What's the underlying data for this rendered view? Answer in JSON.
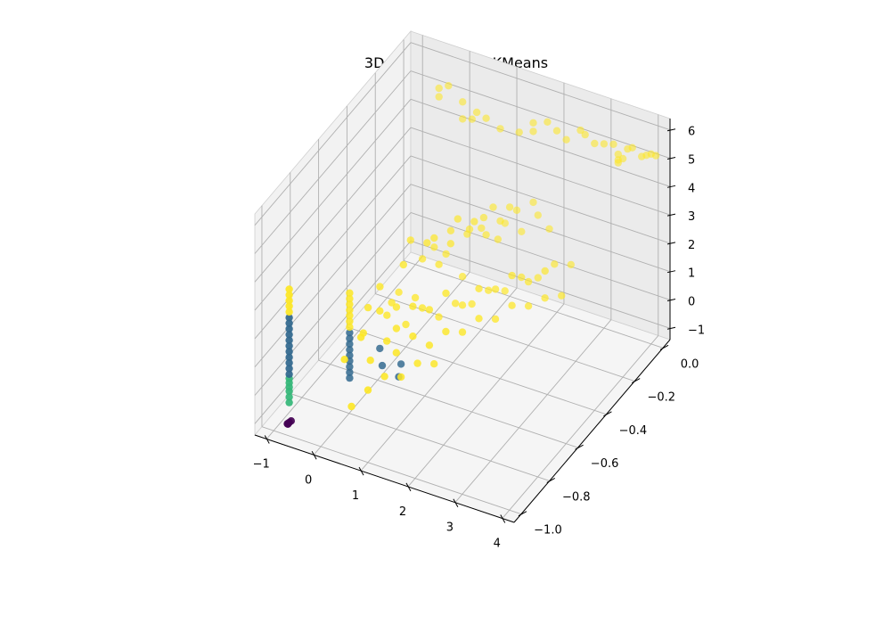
{
  "chart_data": {
    "type": "scatter",
    "projection": "3d",
    "title": "3D clusters using KMeans",
    "xlabel": "",
    "ylabel": "",
    "zlabel": "",
    "xlim": [
      -1.25,
      4.25
    ],
    "ylim": [
      -1.05,
      0.05
    ],
    "zlim": [
      -1.4,
      6.4
    ],
    "x_ticks": [
      -1,
      0,
      1,
      2,
      3,
      4
    ],
    "x_tick_labels": [
      "−1",
      "0",
      "1",
      "2",
      "3",
      "4"
    ],
    "y_ticks": [
      -1.0,
      -0.8,
      -0.6,
      -0.4,
      -0.2,
      0.0
    ],
    "y_tick_labels": [
      "−1.0",
      "−0.8",
      "−0.6",
      "−0.4",
      "−0.2",
      "0.0"
    ],
    "z_ticks": [
      -1,
      0,
      1,
      2,
      3,
      4,
      5,
      6
    ],
    "z_tick_labels": [
      "−1",
      "0",
      "1",
      "2",
      "3",
      "4",
      "5",
      "6"
    ],
    "grid": true,
    "colors": {
      "cluster_0": "#440154",
      "cluster_1": "#31688e",
      "cluster_2": "#35b779",
      "cluster_3": "#fde725"
    },
    "series": [
      {
        "cluster": 0,
        "color": "#440154",
        "points": [
          [
            -0.7,
            -0.99,
            -1.0
          ],
          [
            -0.7,
            -1.0,
            -1.0
          ],
          [
            -0.69,
            -0.98,
            -1.0
          ],
          [
            -0.71,
            -1.0,
            -0.99
          ]
        ]
      },
      {
        "cluster": 2,
        "color": "#35b779",
        "points": [
          [
            -0.7,
            -0.99,
            -0.3
          ],
          [
            -0.7,
            -0.99,
            -0.1
          ],
          [
            -0.7,
            -0.99,
            0.1
          ],
          [
            -0.7,
            -0.99,
            0.25
          ],
          [
            -0.7,
            -0.99,
            0.4
          ],
          [
            -0.7,
            -0.99,
            0.55
          ]
        ]
      },
      {
        "cluster": 1,
        "color": "#31688e",
        "points": [
          [
            -0.7,
            -0.99,
            0.7
          ],
          [
            -0.7,
            -0.99,
            0.9
          ],
          [
            -0.7,
            -0.99,
            1.1
          ],
          [
            -0.7,
            -0.99,
            1.3
          ],
          [
            -0.7,
            -0.99,
            1.5
          ],
          [
            -0.7,
            -0.99,
            1.7
          ],
          [
            -0.7,
            -0.99,
            1.9
          ],
          [
            -0.7,
            -0.99,
            2.1
          ],
          [
            -0.7,
            -0.99,
            2.3
          ],
          [
            -0.7,
            -0.99,
            2.5
          ],
          [
            -0.7,
            -0.99,
            2.7
          ],
          [
            -0.05,
            -0.78,
            -0.3
          ],
          [
            -0.05,
            -0.78,
            -0.1
          ],
          [
            -0.05,
            -0.78,
            0.1
          ],
          [
            -0.05,
            -0.78,
            0.3
          ],
          [
            -0.05,
            -0.78,
            0.5
          ],
          [
            -0.05,
            -0.78,
            0.7
          ],
          [
            -0.05,
            -0.78,
            0.9
          ],
          [
            -0.05,
            -0.78,
            1.1
          ],
          [
            -0.05,
            -0.78,
            1.3
          ],
          [
            0.35,
            -0.7,
            0.5
          ],
          [
            0.55,
            -0.75,
            0.3
          ],
          [
            0.8,
            -0.7,
            0.2
          ],
          [
            0.9,
            -0.75,
            0.1
          ]
        ]
      },
      {
        "cluster": 3,
        "color": "#fde725",
        "points": [
          [
            -0.7,
            -0.99,
            2.9
          ],
          [
            -0.7,
            -0.99,
            3.1
          ],
          [
            -0.7,
            -0.99,
            3.3
          ],
          [
            -0.7,
            -0.99,
            3.5
          ],
          [
            -0.7,
            -0.99,
            3.7
          ],
          [
            -0.05,
            -0.78,
            1.5
          ],
          [
            -0.05,
            -0.78,
            1.7
          ],
          [
            -0.05,
            -0.78,
            1.9
          ],
          [
            -0.05,
            -0.78,
            2.1
          ],
          [
            -0.05,
            -0.78,
            2.3
          ],
          [
            -0.05,
            -0.78,
            2.5
          ],
          [
            -0.05,
            -0.78,
            2.7
          ],
          [
            0.1,
            -0.7,
            1.8
          ],
          [
            0.2,
            -0.65,
            2.3
          ],
          [
            0.3,
            -0.6,
            1.5
          ],
          [
            0.4,
            -0.55,
            2.6
          ],
          [
            0.5,
            -0.5,
            1.2
          ],
          [
            0.6,
            -0.45,
            2.9
          ],
          [
            0.7,
            -0.4,
            1.9
          ],
          [
            0.8,
            -0.35,
            2.4
          ],
          [
            0.9,
            -0.3,
            1.0
          ],
          [
            1.0,
            -0.25,
            2.7
          ],
          [
            1.1,
            -0.2,
            2.0
          ],
          [
            1.2,
            -0.15,
            1.6
          ],
          [
            1.3,
            -0.1,
            2.5
          ],
          [
            1.4,
            -0.05,
            1.4
          ],
          [
            1.5,
            0.0,
            2.2
          ],
          [
            0.15,
            -0.5,
            1.2
          ],
          [
            0.25,
            -0.45,
            2.8
          ],
          [
            0.35,
            -0.4,
            1.9
          ],
          [
            0.45,
            -0.35,
            2.4
          ],
          [
            0.55,
            -0.3,
            1.6
          ],
          [
            0.65,
            -0.25,
            2.6
          ],
          [
            0.75,
            -0.2,
            2.0
          ],
          [
            0.85,
            -0.15,
            1.8
          ],
          [
            0.95,
            -0.1,
            2.3
          ],
          [
            1.05,
            -0.05,
            1.5
          ],
          [
            0.3,
            -0.8,
            1.6
          ],
          [
            0.5,
            -0.75,
            2.2
          ],
          [
            0.7,
            -0.7,
            1.4
          ],
          [
            0.9,
            -0.65,
            2.0
          ],
          [
            1.1,
            -0.6,
            1.7
          ],
          [
            1.3,
            -0.55,
            2.1
          ],
          [
            1.5,
            -0.5,
            1.5
          ],
          [
            1.7,
            -0.45,
            1.9
          ],
          [
            1.9,
            -0.4,
            1.7
          ],
          [
            2.1,
            -0.35,
            2.0
          ],
          [
            2.3,
            -0.3,
            1.6
          ],
          [
            2.5,
            -0.25,
            1.8
          ],
          [
            0.2,
            -0.6,
            1.0
          ],
          [
            0.4,
            -0.6,
            1.4
          ],
          [
            0.6,
            -0.6,
            0.9
          ],
          [
            0.8,
            -0.55,
            1.3
          ],
          [
            1.0,
            -0.5,
            0.8
          ],
          [
            1.2,
            -0.45,
            1.1
          ],
          [
            1.4,
            -0.4,
            0.9
          ],
          [
            1.6,
            -0.35,
            1.2
          ],
          [
            1.8,
            -0.3,
            1.0
          ],
          [
            2.0,
            -0.25,
            1.3
          ],
          [
            2.2,
            -0.2,
            1.1
          ],
          [
            2.4,
            -0.15,
            1.4
          ],
          [
            2.6,
            -0.1,
            1.2
          ],
          [
            0.3,
            -0.3,
            1.7
          ],
          [
            0.5,
            -0.25,
            2.1
          ],
          [
            0.7,
            -0.2,
            1.8
          ],
          [
            0.9,
            -0.15,
            2.2
          ],
          [
            1.1,
            -0.1,
            1.9
          ],
          [
            1.3,
            -0.05,
            2.1
          ],
          [
            1.6,
            0.0,
            1.8
          ],
          [
            1.9,
            -0.02,
            1.6
          ],
          [
            0.2,
            -0.9,
            1.2
          ],
          [
            0.4,
            -0.85,
            1.8
          ],
          [
            0.6,
            -0.85,
            1.1
          ],
          [
            0.8,
            -0.8,
            1.6
          ],
          [
            1.0,
            -0.8,
            1.3
          ],
          [
            1.2,
            -0.75,
            1.7
          ],
          [
            1.4,
            -0.7,
            1.2
          ],
          [
            1.6,
            -0.65,
            1.5
          ],
          [
            1.8,
            -0.6,
            1.3
          ],
          [
            2.0,
            -0.55,
            1.6
          ],
          [
            2.2,
            -0.5,
            1.4
          ],
          [
            2.4,
            -0.45,
            1.7
          ],
          [
            2.6,
            -0.4,
            1.5
          ],
          [
            2.8,
            -0.35,
            1.6
          ],
          [
            3.0,
            -0.3,
            1.5
          ],
          [
            0.5,
            -0.95,
            0.0
          ],
          [
            0.7,
            -0.9,
            0.4
          ],
          [
            0.9,
            -0.85,
            0.7
          ],
          [
            1.1,
            -0.8,
            0.5
          ],
          [
            1.3,
            -0.75,
            0.8
          ],
          [
            1.5,
            -0.7,
            0.6
          ],
          [
            -0.5,
            0.0,
            5.1
          ],
          [
            -0.5,
            0.0,
            4.8
          ],
          [
            -0.3,
            0.0,
            5.3
          ],
          [
            0.0,
            0.0,
            4.9
          ],
          [
            0.0,
            0.0,
            4.3
          ],
          [
            0.2,
            0.0,
            4.4
          ],
          [
            0.3,
            0.0,
            4.7
          ],
          [
            0.5,
            0.0,
            4.6
          ],
          [
            0.8,
            0.0,
            4.4
          ],
          [
            1.2,
            0.0,
            4.5
          ],
          [
            1.5,
            0.0,
            5.0
          ],
          [
            1.5,
            0.0,
            4.7
          ],
          [
            1.8,
            0.0,
            5.2
          ],
          [
            2.0,
            0.0,
            5.0
          ],
          [
            2.2,
            0.0,
            4.8
          ],
          [
            2.5,
            0.0,
            5.3
          ],
          [
            2.6,
            0.0,
            5.2
          ],
          [
            2.8,
            0.0,
            5.0
          ],
          [
            3.0,
            0.0,
            5.1
          ],
          [
            3.2,
            0.0,
            5.2
          ],
          [
            3.3,
            0.0,
            4.9
          ],
          [
            3.3,
            0.0,
            4.7
          ],
          [
            3.3,
            0.0,
            4.6
          ],
          [
            3.4,
            0.0,
            4.8
          ],
          [
            3.5,
            0.0,
            5.2
          ],
          [
            3.6,
            0.0,
            5.3
          ],
          [
            3.8,
            0.0,
            5.1
          ],
          [
            3.9,
            0.0,
            5.2
          ],
          [
            4.0,
            0.0,
            5.3
          ],
          [
            4.1,
            0.0,
            5.3
          ]
        ]
      }
    ]
  }
}
